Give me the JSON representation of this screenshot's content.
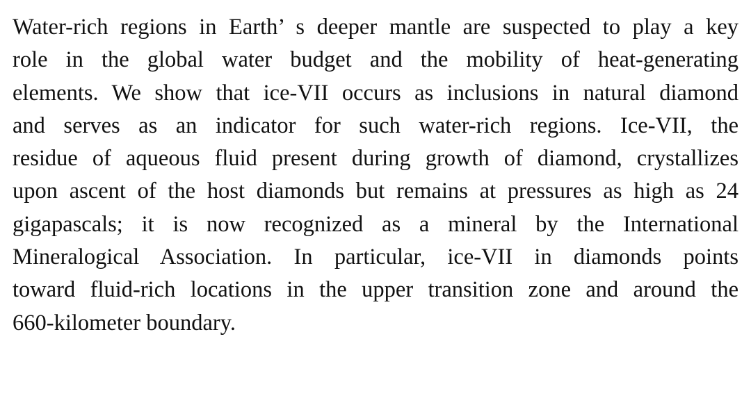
{
  "abstract": {
    "lines": [
      "Water-rich regions in Earth’  s deeper mantle are suspected to play a key",
      "role in the global water budget and the mobility of heat-generating",
      "elements. We show that ice-VII occurs as inclusions in natural diamond",
      "and serves as an indicator for such water-rich regions. Ice-VII, the",
      "residue of aqueous fluid present during growth of diamond, crystallizes",
      "upon ascent of the host diamonds but remains at pressures as high as 24",
      "gigapascals; it is now recognized as a mineral by the International",
      "Mineralogical Association. In particular, ice-VII in diamonds points",
      "toward fluid-rich locations in the upper transition zone and around the",
      "660-kilometer boundary."
    ]
  }
}
